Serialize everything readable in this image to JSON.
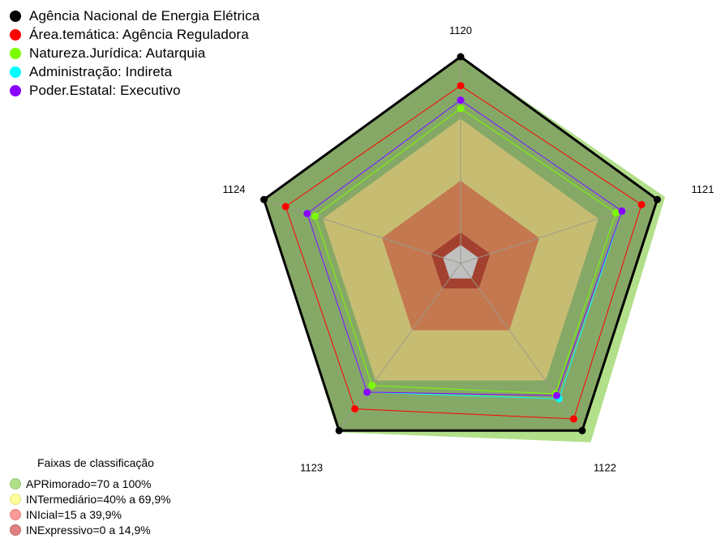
{
  "chart_data": {
    "type": "radar",
    "axes": [
      "1120",
      "1121",
      "1122",
      "1123",
      "1124"
    ],
    "rmax": 100,
    "series": [
      {
        "name": "Agência Nacional de Energia Elétrica",
        "color": "#000000",
        "line_width": 3,
        "values": [
          100,
          100,
          100,
          100,
          100
        ]
      },
      {
        "name": "Área.temática: Agência Reguladora",
        "color": "#ff0000",
        "line_width": 1,
        "values": [
          86,
          92,
          93,
          87,
          89
        ]
      },
      {
        "name": "Natureza.Jurídica: Autarquia",
        "color": "#7cfc00",
        "line_width": 1,
        "values": [
          75,
          79,
          78,
          73,
          74
        ]
      },
      {
        "name": "Administração: Indireta",
        "color": "#00ffff",
        "line_width": 1,
        "values": [
          79,
          82,
          81,
          77,
          78
        ]
      },
      {
        "name": "Poder.Estatal: Executivo",
        "color": "#8a00ff",
        "line_width": 1,
        "values": [
          79,
          82,
          79,
          77,
          78
        ]
      }
    ],
    "background_area": {
      "color": "#b2df8a",
      "values": [
        100,
        104,
        107,
        101,
        100
      ]
    },
    "bands": [
      {
        "label": "APRimorado=70 a 100%",
        "from": 70,
        "to": 100,
        "fill": "#86a866",
        "legend_color": "#b2df8a"
      },
      {
        "label": "INTermediário=40% a 69,9%",
        "from": 40,
        "to": 70,
        "fill": "#c6bd73",
        "legend_color": "#ffff99"
      },
      {
        "label": "INIcial=15 a 39,9%",
        "from": 15,
        "to": 40,
        "fill": "#c4784f",
        "legend_color": "#fb9a99"
      },
      {
        "label": "INExpressivo=0 a 14,9%",
        "from": 0,
        "to": 15,
        "fill": "#a4402f",
        "legend_color": "#e08080"
      }
    ],
    "center_fill": "#c0c0c0",
    "bands_title": "Faixas de classificação"
  }
}
